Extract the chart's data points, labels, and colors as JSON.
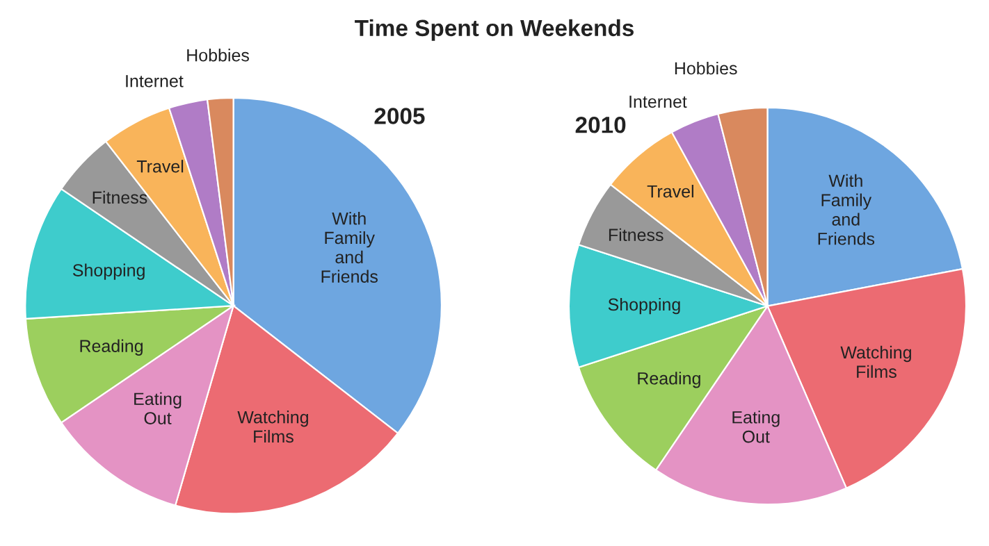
{
  "chart_data": [
    {
      "type": "pie",
      "title": "Time Spent on Weekends",
      "subtitle": "2005",
      "categories": [
        "With\nFamily\nand\nFriends",
        "Watching\nFilms",
        "Eating\nOut",
        "Reading",
        "Shopping",
        "Fitness",
        "Travel",
        "Internet",
        "Hobbies"
      ],
      "values": [
        35.5,
        19,
        11,
        8.5,
        10.5,
        5,
        5.5,
        3,
        2
      ],
      "colors": [
        "#6ea6e0",
        "#ec6b72",
        "#e493c4",
        "#9ccf5e",
        "#3ecccc",
        "#999999",
        "#f9b45a",
        "#b07cc6",
        "#d9895e"
      ]
    },
    {
      "type": "pie",
      "subtitle": "2010",
      "categories": [
        "With\nFamily\nand\nFriends",
        "Watching\nFilms",
        "Eating\nOut",
        "Reading",
        "Shopping",
        "Fitness",
        "Travel",
        "Internet",
        "Hobbies"
      ],
      "values": [
        22,
        21.5,
        16,
        10.5,
        10,
        5.5,
        6.5,
        4,
        4
      ],
      "colors": [
        "#6ea6e0",
        "#ec6b72",
        "#e493c4",
        "#9ccf5e",
        "#3ecccc",
        "#999999",
        "#f9b45a",
        "#b07cc6",
        "#d9895e"
      ]
    }
  ]
}
